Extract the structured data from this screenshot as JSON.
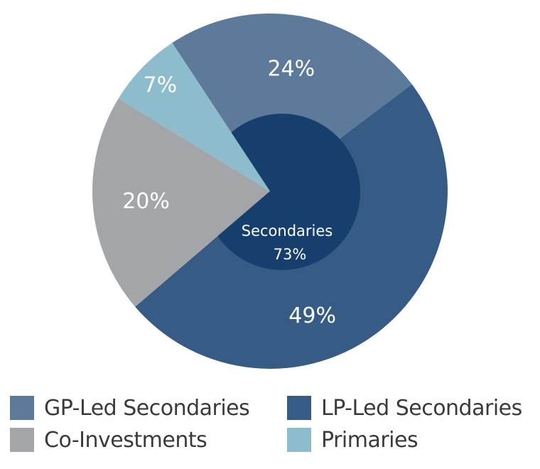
{
  "chart_data": {
    "type": "pie",
    "slices": [
      {
        "name": "GP-Led Secondaries",
        "value": 24,
        "label": "24%",
        "color": "#5e7a9b"
      },
      {
        "name": "LP-Led Secondaries",
        "value": 49,
        "label": "49%",
        "color": "#365b84"
      },
      {
        "name": "Co-Investments",
        "value": 20,
        "label": "20%",
        "color": "#a3a5a8"
      },
      {
        "name": "Primaries",
        "value": 7,
        "label": "7%",
        "color": "#8dbccd"
      }
    ],
    "inner": {
      "line1": "Secondaries",
      "line2": "73%",
      "value": 73,
      "color": "#173f6d"
    },
    "legend_placement": "bottom"
  },
  "legend": [
    {
      "label": "GP-Led Secondaries",
      "color": "#5e7a9b"
    },
    {
      "label": "LP-Led Secondaries",
      "color": "#365b84"
    },
    {
      "label": "Co-Investments",
      "color": "#a3a5a8"
    },
    {
      "label": "Primaries",
      "color": "#8dbccd"
    }
  ]
}
